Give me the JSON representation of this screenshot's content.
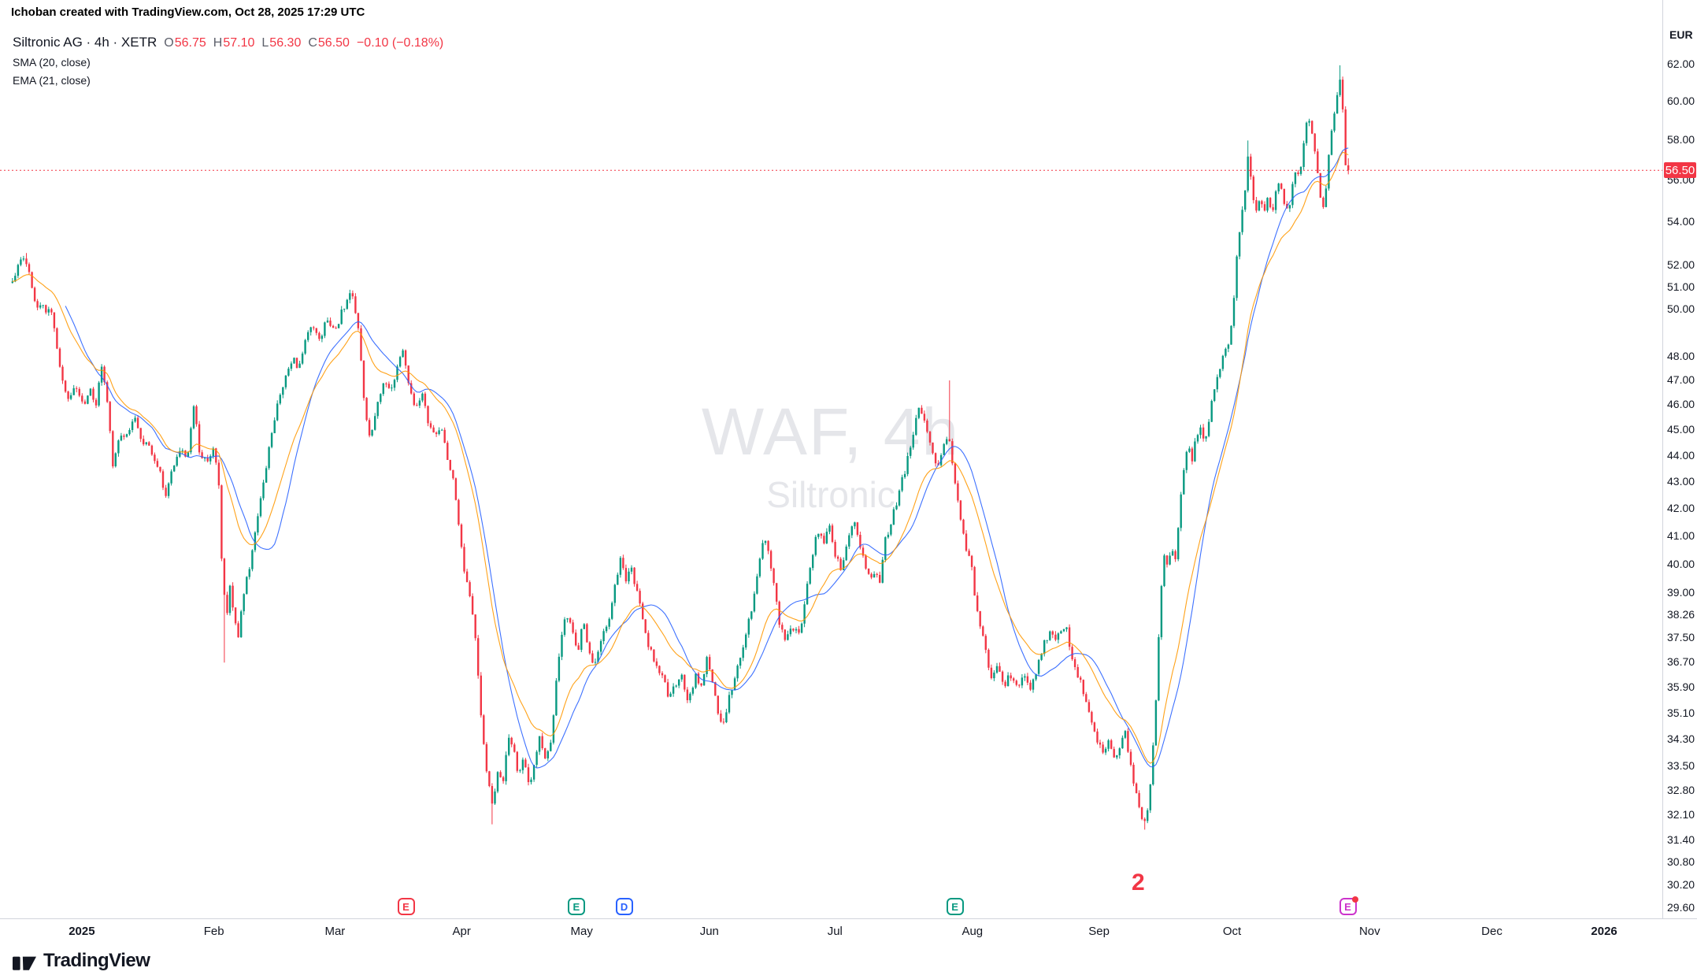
{
  "attribution": "Ichoban created with TradingView.com, Oct 28, 2025 17:29 UTC",
  "legend": {
    "symbol_title": "Siltronic AG · 4h · XETR",
    "ohlc": {
      "o_label": "O",
      "o": "56.75",
      "h_label": "H",
      "h": "57.10",
      "l_label": "L",
      "l": "56.30",
      "c_label": "C",
      "c": "56.50",
      "change": "−0.10 (−0.18%)"
    },
    "indicators": [
      {
        "label": "SMA (20, close)"
      },
      {
        "label": "EMA (21, close)"
      }
    ]
  },
  "watermark": {
    "line1": "WAF, 4h",
    "line2": "Siltronic"
  },
  "price_scale": {
    "currency_label": "EUR",
    "last_price_label": "56.50",
    "ticks": [
      {
        "label": "62.00",
        "value": 62.0
      },
      {
        "label": "60.00",
        "value": 60.0
      },
      {
        "label": "58.00",
        "value": 58.0
      },
      {
        "label": "56.00",
        "value": 56.0
      },
      {
        "label": "54.00",
        "value": 54.0
      },
      {
        "label": "52.00",
        "value": 52.0
      },
      {
        "label": "51.00",
        "value": 51.0
      },
      {
        "label": "50.00",
        "value": 50.0
      },
      {
        "label": "48.00",
        "value": 48.0
      },
      {
        "label": "47.00",
        "value": 47.0
      },
      {
        "label": "46.00",
        "value": 46.0
      },
      {
        "label": "45.00",
        "value": 45.0
      },
      {
        "label": "44.00",
        "value": 44.0
      },
      {
        "label": "43.00",
        "value": 43.0
      },
      {
        "label": "42.00",
        "value": 42.0
      },
      {
        "label": "41.00",
        "value": 41.0
      },
      {
        "label": "40.00",
        "value": 40.0
      },
      {
        "label": "39.00",
        "value": 39.0
      },
      {
        "label": "38.26",
        "value": 38.26
      },
      {
        "label": "37.50",
        "value": 37.5
      },
      {
        "label": "36.70",
        "value": 36.7
      },
      {
        "label": "35.90",
        "value": 35.9
      },
      {
        "label": "35.10",
        "value": 35.1
      },
      {
        "label": "34.30",
        "value": 34.3
      },
      {
        "label": "33.50",
        "value": 33.5
      },
      {
        "label": "32.80",
        "value": 32.8
      },
      {
        "label": "32.10",
        "value": 32.1
      },
      {
        "label": "31.40",
        "value": 31.4
      },
      {
        "label": "30.80",
        "value": 30.8
      },
      {
        "label": "30.20",
        "value": 30.2
      },
      {
        "label": "29.60",
        "value": 29.6
      }
    ]
  },
  "time_scale": {
    "labels": [
      {
        "text": "2025",
        "f": 0.0482,
        "bold": true
      },
      {
        "text": "Feb",
        "f": 0.1261
      },
      {
        "text": "Mar",
        "f": 0.1974
      },
      {
        "text": "Apr",
        "f": 0.272
      },
      {
        "text": "May",
        "f": 0.3428
      },
      {
        "text": "Jun",
        "f": 0.418
      },
      {
        "text": "Jul",
        "f": 0.492
      },
      {
        "text": "Aug",
        "f": 0.573
      },
      {
        "text": "Sep",
        "f": 0.6476
      },
      {
        "text": "Oct",
        "f": 0.726
      },
      {
        "text": "Nov",
        "f": 0.8071
      },
      {
        "text": "Dec",
        "f": 0.8791
      },
      {
        "text": "2026",
        "f": 0.9453,
        "bold": true
      }
    ]
  },
  "timeline_markers": [
    {
      "letter": "E",
      "color": "#f23645",
      "f": 0.2392
    },
    {
      "letter": "E",
      "color": "#089981",
      "f": 0.3396
    },
    {
      "letter": "D",
      "color": "#2962ff",
      "f": 0.3678
    },
    {
      "letter": "E",
      "color": "#089981",
      "f": 0.5627
    },
    {
      "letter": "E",
      "color": "#cc33cc",
      "f": 0.7942,
      "dot": true
    }
  ],
  "wave_label": {
    "text": "2",
    "color": "#f23645",
    "f": 0.6707
  },
  "branding": {
    "logo_text": "TradingView"
  },
  "colors": {
    "up": "#089981",
    "down": "#f23645",
    "sma": "#2962ff",
    "ema": "#ff9800",
    "axis_text": "#131722",
    "separator": "#d1d4dc",
    "badge_bg": "#f23645"
  },
  "chart_data": {
    "type": "candlestick",
    "symbol": "Siltronic AG",
    "ticker": "WAF",
    "exchange": "XETR",
    "interval": "4h",
    "currency": "EUR",
    "title": "Siltronic AG · 4h · XETR",
    "time_span": {
      "start": "Jan 2025",
      "end": "Oct 28, 2025 17:29 UTC"
    },
    "y_axis": {
      "scale": "log",
      "grid": false,
      "side": "right"
    },
    "visible_price_range": [
      29.33,
      65.6
    ],
    "last_ohlc": {
      "open": 56.75,
      "high": 57.1,
      "low": 56.3,
      "close": 56.5
    },
    "change": -0.1,
    "change_pct": -0.18,
    "indicators": [
      {
        "type": "SMA",
        "length": 20,
        "source": "close"
      },
      {
        "type": "EMA",
        "length": 21,
        "source": "close"
      }
    ],
    "candle_count": 480,
    "price_path": [
      [
        0.0,
        51.2
      ],
      [
        0.005,
        52.0
      ],
      [
        0.01,
        52.3
      ],
      [
        0.014,
        51.1
      ],
      [
        0.018,
        50.3
      ],
      [
        0.024,
        50.1
      ],
      [
        0.03,
        49.8
      ],
      [
        0.036,
        47.3
      ],
      [
        0.042,
        46.3
      ],
      [
        0.048,
        46.8
      ],
      [
        0.053,
        45.9
      ],
      [
        0.058,
        46.6
      ],
      [
        0.063,
        46.0
      ],
      [
        0.067,
        47.8
      ],
      [
        0.071,
        46.2
      ],
      [
        0.075,
        43.7
      ],
      [
        0.08,
        44.6
      ],
      [
        0.086,
        44.9
      ],
      [
        0.092,
        45.4
      ],
      [
        0.098,
        44.5
      ],
      [
        0.104,
        44.2
      ],
      [
        0.11,
        43.4
      ],
      [
        0.115,
        42.4
      ],
      [
        0.12,
        43.6
      ],
      [
        0.126,
        44.4
      ],
      [
        0.131,
        43.8
      ],
      [
        0.136,
        46.1
      ],
      [
        0.14,
        44.2
      ],
      [
        0.145,
        43.7
      ],
      [
        0.15,
        44.3
      ],
      [
        0.154,
        43.4
      ],
      [
        0.157,
        39.8
      ],
      [
        0.16,
        38.1
      ],
      [
        0.163,
        39.2
      ],
      [
        0.166,
        38.1
      ],
      [
        0.169,
        37.4
      ],
      [
        0.172,
        38.7
      ],
      [
        0.176,
        39.6
      ],
      [
        0.18,
        40.6
      ],
      [
        0.186,
        42.4
      ],
      [
        0.192,
        44.3
      ],
      [
        0.198,
        45.9
      ],
      [
        0.204,
        47.0
      ],
      [
        0.21,
        47.9
      ],
      [
        0.214,
        47.4
      ],
      [
        0.218,
        48.4
      ],
      [
        0.224,
        49.4
      ],
      [
        0.23,
        48.8
      ],
      [
        0.236,
        49.6
      ],
      [
        0.242,
        49.2
      ],
      [
        0.248,
        50.1
      ],
      [
        0.254,
        50.9
      ],
      [
        0.259,
        49.0
      ],
      [
        0.263,
        46.3
      ],
      [
        0.268,
        44.5
      ],
      [
        0.273,
        45.9
      ],
      [
        0.278,
        47.1
      ],
      [
        0.283,
        46.4
      ],
      [
        0.288,
        47.7
      ],
      [
        0.292,
        48.5
      ],
      [
        0.297,
        46.8
      ],
      [
        0.302,
        45.9
      ],
      [
        0.307,
        46.4
      ],
      [
        0.312,
        45.2
      ],
      [
        0.317,
        44.8
      ],
      [
        0.322,
        45.0
      ],
      [
        0.327,
        43.6
      ],
      [
        0.331,
        42.9
      ],
      [
        0.335,
        41.0
      ],
      [
        0.339,
        39.6
      ],
      [
        0.343,
        38.9
      ],
      [
        0.347,
        37.2
      ],
      [
        0.351,
        35.0
      ],
      [
        0.356,
        33.0
      ],
      [
        0.36,
        32.3
      ],
      [
        0.363,
        33.4
      ],
      [
        0.367,
        33.0
      ],
      [
        0.371,
        34.3
      ],
      [
        0.375,
        34.0
      ],
      [
        0.379,
        33.2
      ],
      [
        0.383,
        33.8
      ],
      [
        0.387,
        33.0
      ],
      [
        0.391,
        33.7
      ],
      [
        0.395,
        34.4
      ],
      [
        0.399,
        33.8
      ],
      [
        0.403,
        34.2
      ],
      [
        0.407,
        36.0
      ],
      [
        0.411,
        37.6
      ],
      [
        0.415,
        38.3
      ],
      [
        0.419,
        37.8
      ],
      [
        0.423,
        37.0
      ],
      [
        0.427,
        38.2
      ],
      [
        0.431,
        37.1
      ],
      [
        0.435,
        36.6
      ],
      [
        0.439,
        37.0
      ],
      [
        0.443,
        37.8
      ],
      [
        0.447,
        38.2
      ],
      [
        0.451,
        39.2
      ],
      [
        0.455,
        40.3
      ],
      [
        0.459,
        39.5
      ],
      [
        0.463,
        39.9
      ],
      [
        0.467,
        39.2
      ],
      [
        0.471,
        38.3
      ],
      [
        0.476,
        37.2
      ],
      [
        0.481,
        36.8
      ],
      [
        0.486,
        36.3
      ],
      [
        0.491,
        35.7
      ],
      [
        0.496,
        35.9
      ],
      [
        0.501,
        36.2
      ],
      [
        0.506,
        35.4
      ],
      [
        0.511,
        36.3
      ],
      [
        0.516,
        36.0
      ],
      [
        0.52,
        36.8
      ],
      [
        0.524,
        36.2
      ],
      [
        0.528,
        35.1
      ],
      [
        0.532,
        34.7
      ],
      [
        0.536,
        35.5
      ],
      [
        0.541,
        36.3
      ],
      [
        0.546,
        37.1
      ],
      [
        0.551,
        38.0
      ],
      [
        0.555,
        38.9
      ],
      [
        0.559,
        40.2
      ],
      [
        0.563,
        41.0
      ],
      [
        0.567,
        40.2
      ],
      [
        0.571,
        38.9
      ],
      [
        0.575,
        37.8
      ],
      [
        0.579,
        37.4
      ],
      [
        0.584,
        37.9
      ],
      [
        0.589,
        37.6
      ],
      [
        0.594,
        38.9
      ],
      [
        0.599,
        40.4
      ],
      [
        0.603,
        41.2
      ],
      [
        0.607,
        40.8
      ],
      [
        0.611,
        41.4
      ],
      [
        0.615,
        40.5
      ],
      [
        0.62,
        39.8
      ],
      [
        0.625,
        40.8
      ],
      [
        0.63,
        41.7
      ],
      [
        0.635,
        40.6
      ],
      [
        0.64,
        39.5
      ],
      [
        0.645,
        39.8
      ],
      [
        0.649,
        39.4
      ],
      [
        0.653,
        40.8
      ],
      [
        0.658,
        41.5
      ],
      [
        0.663,
        42.5
      ],
      [
        0.668,
        43.4
      ],
      [
        0.673,
        44.6
      ],
      [
        0.678,
        45.9
      ],
      [
        0.683,
        45.2
      ],
      [
        0.688,
        44.4
      ],
      [
        0.693,
        43.5
      ],
      [
        0.697,
        44.5
      ],
      [
        0.701,
        44.9
      ],
      [
        0.705,
        43.0
      ],
      [
        0.709,
        41.8
      ],
      [
        0.713,
        40.7
      ],
      [
        0.717,
        40.3
      ],
      [
        0.721,
        38.7
      ],
      [
        0.725,
        37.9
      ],
      [
        0.729,
        37.0
      ],
      [
        0.733,
        36.2
      ],
      [
        0.737,
        36.6
      ],
      [
        0.742,
        35.9
      ],
      [
        0.747,
        36.3
      ],
      [
        0.752,
        35.9
      ],
      [
        0.757,
        36.4
      ],
      [
        0.762,
        35.8
      ],
      [
        0.767,
        36.5
      ],
      [
        0.772,
        37.3
      ],
      [
        0.777,
        37.7
      ],
      [
        0.781,
        37.4
      ],
      [
        0.785,
        37.8
      ],
      [
        0.789,
        37.9
      ],
      [
        0.793,
        36.9
      ],
      [
        0.797,
        36.3
      ],
      [
        0.801,
        35.9
      ],
      [
        0.805,
        35.3
      ],
      [
        0.809,
        34.7
      ],
      [
        0.813,
        34.2
      ],
      [
        0.817,
        33.9
      ],
      [
        0.821,
        34.4
      ],
      [
        0.825,
        33.7
      ],
      [
        0.829,
        34.1
      ],
      [
        0.833,
        34.5
      ],
      [
        0.837,
        33.5
      ],
      [
        0.841,
        32.8
      ],
      [
        0.845,
        32.1
      ],
      [
        0.848,
        31.8
      ],
      [
        0.852,
        33.0
      ],
      [
        0.856,
        35.5
      ],
      [
        0.859,
        38.5
      ],
      [
        0.862,
        40.3
      ],
      [
        0.865,
        40.0
      ],
      [
        0.868,
        40.5
      ],
      [
        0.871,
        40.2
      ],
      [
        0.874,
        42.3
      ],
      [
        0.877,
        43.4
      ],
      [
        0.88,
        44.4
      ],
      [
        0.883,
        43.7
      ],
      [
        0.886,
        44.7
      ],
      [
        0.889,
        45.3
      ],
      [
        0.892,
        44.5
      ],
      [
        0.895,
        45.2
      ],
      [
        0.898,
        46.2
      ],
      [
        0.902,
        47.1
      ],
      [
        0.906,
        47.9
      ],
      [
        0.91,
        48.4
      ],
      [
        0.913,
        49.4
      ],
      [
        0.916,
        52.0
      ],
      [
        0.919,
        53.9
      ],
      [
        0.922,
        54.8
      ],
      [
        0.925,
        57.4
      ],
      [
        0.928,
        55.6
      ],
      [
        0.931,
        54.5
      ],
      [
        0.934,
        55.3
      ],
      [
        0.937,
        54.5
      ],
      [
        0.94,
        55.5
      ],
      [
        0.943,
        54.3
      ],
      [
        0.946,
        55.7
      ],
      [
        0.949,
        56.1
      ],
      [
        0.952,
        55.0
      ],
      [
        0.955,
        54.5
      ],
      [
        0.958,
        55.7
      ],
      [
        0.961,
        56.8
      ],
      [
        0.964,
        56.1
      ],
      [
        0.967,
        58.3
      ],
      [
        0.97,
        59.2
      ],
      [
        0.973,
        58.5
      ],
      [
        0.976,
        57.0
      ],
      [
        0.979,
        55.1
      ],
      [
        0.982,
        54.8
      ],
      [
        0.985,
        56.9
      ],
      [
        0.988,
        58.8
      ],
      [
        0.991,
        60.0
      ],
      [
        0.994,
        61.4
      ],
      [
        0.997,
        58.6
      ],
      [
        1.0,
        56.6
      ]
    ],
    "spikes": [
      {
        "f": 0.01,
        "price": 52.55,
        "type": "high"
      },
      {
        "f": 0.158,
        "price": 36.7,
        "type": "low"
      },
      {
        "f": 0.36,
        "price": 31.85,
        "type": "low"
      },
      {
        "f": 0.701,
        "price": 47.0,
        "type": "high"
      },
      {
        "f": 0.848,
        "price": 31.7,
        "type": "low"
      },
      {
        "f": 0.925,
        "price": 58.0,
        "type": "high"
      },
      {
        "f": 0.994,
        "price": 61.95,
        "type": "high"
      }
    ]
  }
}
